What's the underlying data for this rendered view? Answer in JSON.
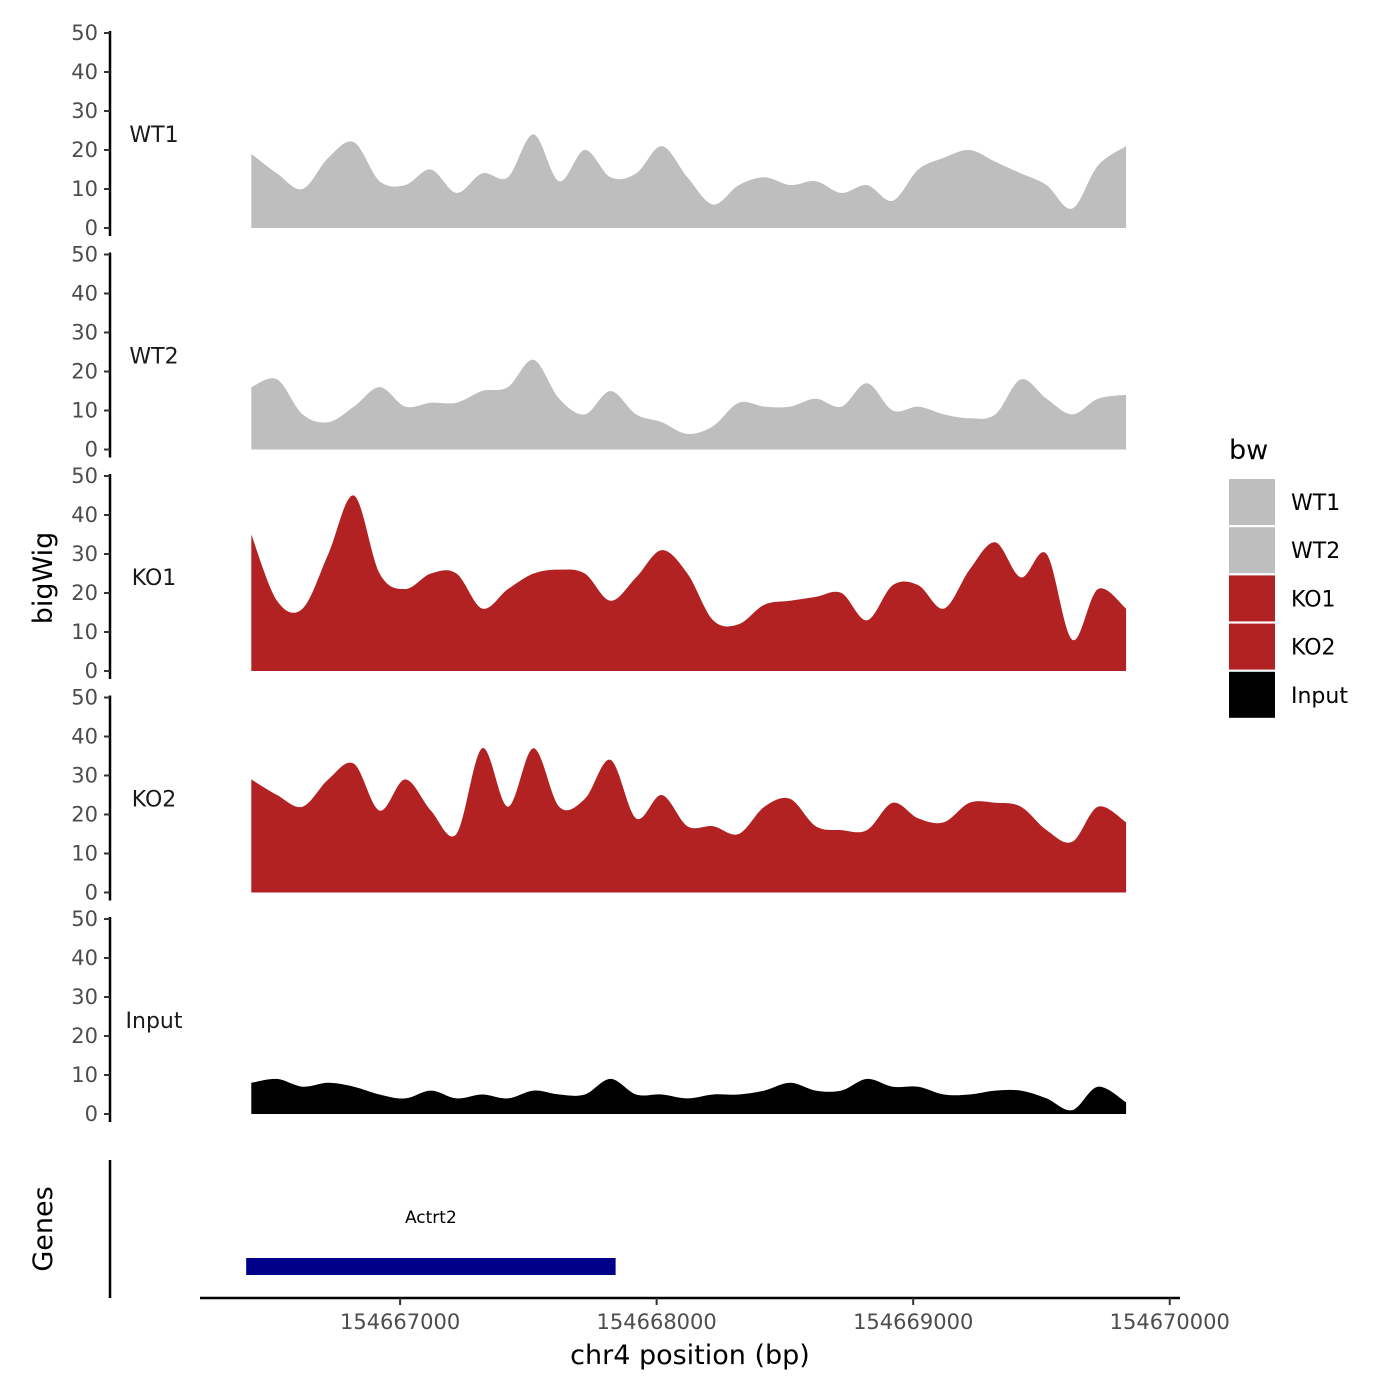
{
  "chart_data": {
    "type": "area",
    "ylabel": "bigWig",
    "xlabel": "chr4 position (bp)",
    "x_range": [
      154666220,
      154670040
    ],
    "x_ticks": [
      154667000,
      154668000,
      154669000,
      154670000
    ],
    "x_tick_labels": [
      "154667000",
      "154668000",
      "154669000",
      "154670000"
    ],
    "ylim": [
      0,
      50
    ],
    "y_ticks": [
      0,
      10,
      20,
      30,
      40,
      50
    ],
    "y_tick_labels": [
      "0",
      "10",
      "20",
      "30",
      "40",
      "50"
    ],
    "legend": {
      "title": "bw",
      "position": "right",
      "entries": [
        {
          "label": "WT1",
          "color": "#bebebe"
        },
        {
          "label": "WT2",
          "color": "#bebebe"
        },
        {
          "label": "KO1",
          "color": "#b22222"
        },
        {
          "label": "KO2",
          "color": "#b22222"
        },
        {
          "label": "Input",
          "color": "#000000"
        }
      ]
    },
    "x": [
      154666420,
      154666520,
      154666620,
      154666720,
      154666820,
      154666920,
      154667020,
      154667120,
      154667220,
      154667320,
      154667420,
      154667520,
      154667620,
      154667720,
      154667820,
      154667920,
      154668020,
      154668120,
      154668220,
      154668320,
      154668420,
      154668520,
      154668620,
      154668720,
      154668820,
      154668920,
      154669020,
      154669120,
      154669220,
      154669320,
      154669420,
      154669520,
      154669620,
      154669720,
      154669830
    ],
    "series": [
      {
        "name": "WT1",
        "color": "#bebebe",
        "values": [
          19,
          14,
          10,
          18,
          22,
          12,
          11,
          15,
          9,
          14,
          13,
          24,
          12,
          20,
          13,
          14,
          21,
          13,
          6,
          11,
          13,
          11,
          12,
          9,
          11,
          7,
          15,
          18,
          20,
          17,
          14,
          11,
          5,
          16,
          21
        ]
      },
      {
        "name": "WT2",
        "color": "#bebebe",
        "values": [
          16,
          18,
          9,
          7,
          11,
          16,
          11,
          12,
          12,
          15,
          16,
          23,
          13,
          9,
          15,
          9,
          7,
          4,
          6,
          12,
          11,
          11,
          13,
          11,
          17,
          10,
          11,
          9,
          8,
          9,
          18,
          13,
          9,
          13,
          14
        ]
      },
      {
        "name": "KO1",
        "color": "#b22222",
        "values": [
          35,
          18,
          16,
          30,
          45,
          25,
          21,
          25,
          25,
          16,
          21,
          25,
          26,
          25,
          18,
          24,
          31,
          25,
          13,
          12,
          17,
          18,
          19,
          20,
          13,
          22,
          22,
          16,
          26,
          33,
          24,
          30,
          8,
          21,
          16
        ]
      },
      {
        "name": "KO2",
        "color": "#b22222",
        "values": [
          29,
          25,
          22,
          29,
          33,
          21,
          29,
          21,
          15,
          37,
          22,
          37,
          22,
          24,
          34,
          19,
          25,
          17,
          17,
          15,
          22,
          24,
          17,
          16,
          16,
          23,
          19,
          18,
          23,
          23,
          22,
          16,
          13,
          22,
          18
        ]
      },
      {
        "name": "Input",
        "color": "#000000",
        "values": [
          8,
          9,
          7,
          8,
          7,
          5,
          4,
          6,
          4,
          5,
          4,
          6,
          5,
          5,
          9,
          5,
          5,
          4,
          5,
          5,
          6,
          8,
          6,
          6,
          9,
          7,
          7,
          5,
          5,
          6,
          6,
          4,
          1,
          7,
          3
        ]
      }
    ],
    "genes": {
      "ylabel": "Genes",
      "items": [
        {
          "name": "Actrt2",
          "start": 154666400,
          "end": 154667840,
          "color": "#00008b"
        }
      ]
    }
  }
}
